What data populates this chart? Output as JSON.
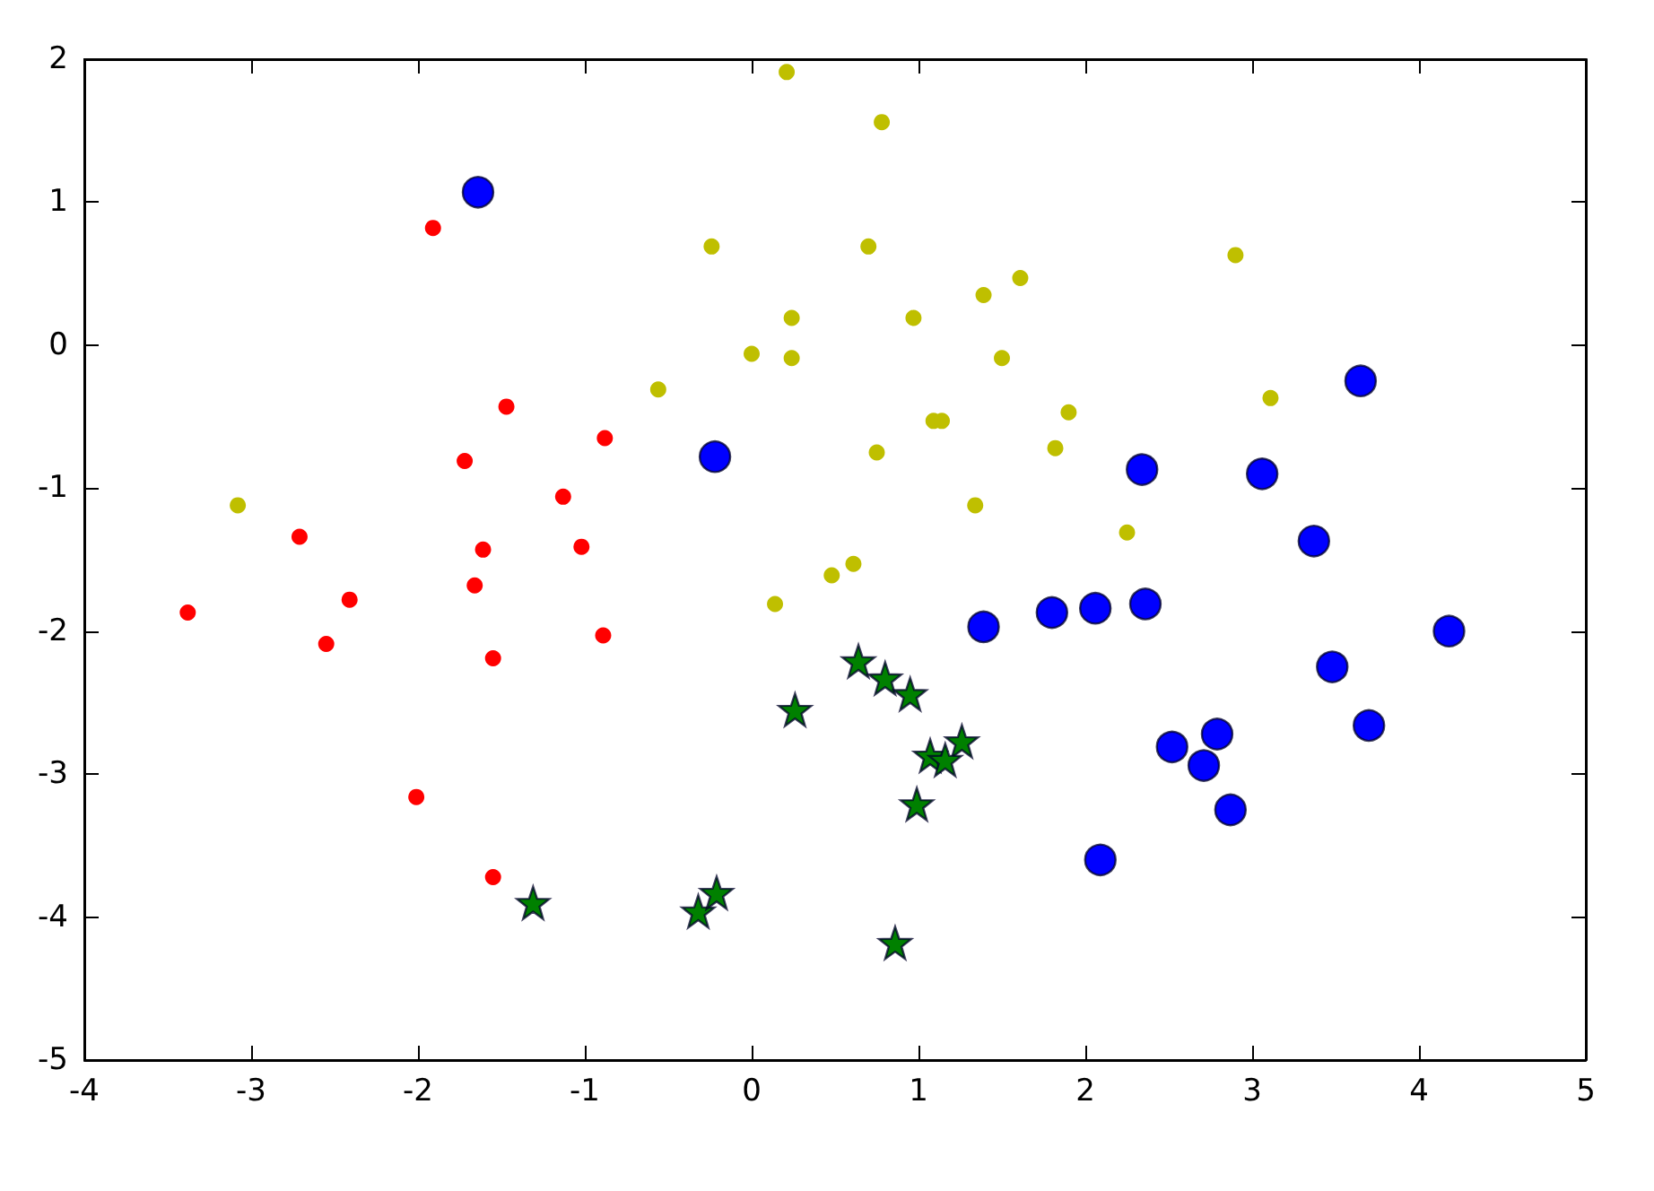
{
  "chart_data": {
    "type": "scatter",
    "xlim": [
      -4,
      5
    ],
    "ylim": [
      -5,
      2
    ],
    "xticks": [
      -4,
      -3,
      -2,
      -1,
      0,
      1,
      2,
      3,
      4,
      5
    ],
    "yticks": [
      -5,
      -4,
      -3,
      -2,
      -1,
      0,
      1,
      2
    ],
    "grid": false,
    "marker": "circle",
    "series": [
      {
        "color": "#ff0000",
        "x": [
          -1.91,
          -1.47,
          -0.88,
          -1.72,
          -1.13,
          -2.71,
          -1.61,
          -1.02,
          -3.38,
          -2.41,
          -1.66,
          -2.55,
          -1.55,
          -0.89,
          -2.01,
          -1.55
        ],
        "values": [
          0.82,
          -0.43,
          -0.65,
          -0.81,
          -1.06,
          -1.34,
          -1.43,
          -1.41,
          -1.87,
          -1.78,
          -1.68,
          -2.09,
          -2.19,
          -2.03,
          -3.16,
          -3.72
        ]
      },
      {
        "color": "#bfbf00",
        "x": [
          0.21,
          -0.24,
          0.24,
          0.0,
          0.24,
          -0.56,
          -3.08,
          0.78,
          0.7,
          2.9,
          1.61,
          1.39,
          0.97,
          1.5,
          3.11,
          1.09,
          1.14,
          1.9,
          0.75,
          1.82,
          1.34,
          2.25,
          0.61,
          0.48,
          0.14
        ],
        "values": [
          1.91,
          0.69,
          0.19,
          -0.06,
          -0.09,
          -0.31,
          -1.12,
          1.56,
          0.69,
          0.63,
          0.47,
          0.35,
          0.19,
          -0.09,
          -0.37,
          -0.53,
          -0.53,
          -0.47,
          -0.75,
          -0.72,
          -1.12,
          -1.31,
          -1.53,
          -1.61,
          -1.81
        ]
      },
      {
        "color": "#0000ff",
        "x": [
          -1.64,
          -0.22,
          3.65,
          2.34,
          3.06,
          3.37,
          1.39,
          1.8,
          2.06,
          2.36,
          4.18,
          3.48,
          3.7,
          2.52,
          2.79,
          2.71,
          2.87,
          2.09
        ],
        "values": [
          1.07,
          -0.78,
          -0.25,
          -0.87,
          -0.9,
          -1.37,
          -1.97,
          -1.87,
          -1.84,
          -1.81,
          -2.0,
          -2.25,
          -2.66,
          -2.81,
          -2.72,
          -2.94,
          -3.25,
          -3.6
        ]
      },
      {
        "color": "#008000",
        "marker": "star",
        "x": [
          0.26,
          -1.31,
          -0.32,
          -0.21,
          0.64,
          0.8,
          0.95,
          1.26,
          1.07,
          1.16,
          0.99,
          0.86
        ],
        "values": [
          -2.55,
          -3.9,
          -3.96,
          -3.83,
          -2.21,
          -2.33,
          -2.44,
          -2.77,
          -2.87,
          -2.9,
          -3.21,
          -4.18
        ]
      }
    ]
  }
}
